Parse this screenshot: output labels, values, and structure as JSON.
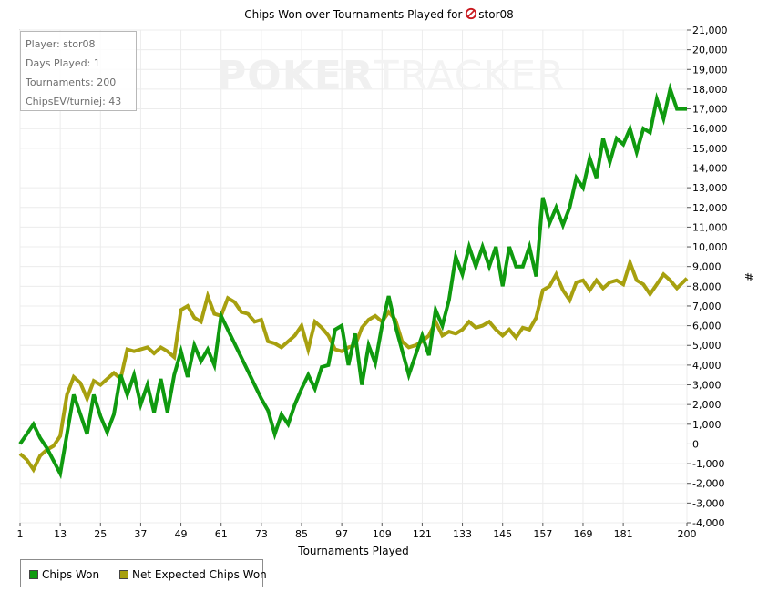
{
  "watermark": {
    "bold": "POKER",
    "light": "TRACKER"
  },
  "stats": {
    "player": "Player: stor08",
    "days": "Days Played: 1",
    "tournaments": "Tournaments: 200",
    "chips_ev": "ChipsEV/turniej: 43"
  },
  "legend": {
    "chips_won": "Chips Won",
    "net_expected": "Net Expected Chips Won"
  },
  "colors": {
    "chips_won": "#0f9a0f",
    "net_expected": "#a7a00f",
    "grid": "#ececec",
    "zero_line": "#000000"
  },
  "chart_data": {
    "type": "line",
    "title": "Chips Won over Tournaments Played for",
    "title_player": "stor08",
    "title_icon": "pokerstars-icon",
    "xlabel": "Tournaments Played",
    "ylabel": "#",
    "xlim": [
      1,
      200
    ],
    "ylim": [
      -4000,
      21000
    ],
    "x_ticks": [
      1,
      13,
      25,
      37,
      49,
      61,
      73,
      85,
      97,
      109,
      121,
      133,
      145,
      157,
      169,
      181,
      200
    ],
    "y_ticks": [
      "-4,000",
      "-3,000",
      "-2,000",
      "-1,000",
      "0",
      "1,000",
      "2,000",
      "3,000",
      "4,000",
      "5,000",
      "6,000",
      "7,000",
      "8,000",
      "9,000",
      "10,000",
      "11,000",
      "12,000",
      "13,000",
      "14,000",
      "15,000",
      "16,000",
      "17,000",
      "18,000",
      "19,000",
      "20,000",
      "21,000"
    ],
    "y_tick_values": [
      -4000,
      -3000,
      -2000,
      -1000,
      0,
      1000,
      2000,
      3000,
      4000,
      5000,
      6000,
      7000,
      8000,
      9000,
      10000,
      11000,
      12000,
      13000,
      14000,
      15000,
      16000,
      17000,
      18000,
      19000,
      20000,
      21000
    ],
    "grid": true,
    "series": [
      {
        "name": "Chips Won",
        "x": [
          1,
          3,
          5,
          7,
          9,
          13,
          17,
          21,
          23,
          25,
          27,
          29,
          31,
          33,
          35,
          37,
          39,
          41,
          43,
          45,
          47,
          49,
          51,
          53,
          55,
          57,
          59,
          61,
          73,
          75,
          77,
          79,
          81,
          83,
          85,
          87,
          89,
          91,
          93,
          95,
          97,
          99,
          101,
          103,
          105,
          107,
          109,
          111,
          113,
          117,
          121,
          123,
          125,
          127,
          129,
          131,
          133,
          135,
          137,
          139,
          141,
          143,
          145,
          147,
          149,
          151,
          153,
          155,
          157,
          159,
          161,
          163,
          165,
          167,
          169,
          171,
          173,
          175,
          177,
          179,
          181,
          183,
          185,
          187,
          189,
          191,
          193,
          195,
          197,
          200
        ],
        "y": [
          0,
          500,
          1000,
          300,
          -200,
          -1500,
          2500,
          500,
          2500,
          1400,
          600,
          1500,
          3500,
          2500,
          3500,
          2000,
          3000,
          1600,
          3300,
          1600,
          3500,
          4700,
          3400,
          5000,
          4200,
          4800,
          4000,
          6500,
          2300,
          1700,
          500,
          1500,
          1000,
          2000,
          2800,
          3500,
          2800,
          3900,
          4000,
          5800,
          6000,
          4000,
          5600,
          3000,
          5000,
          4100,
          6000,
          7500,
          6000,
          3500,
          5500,
          4500,
          6800,
          6000,
          7300,
          9500,
          8600,
          10000,
          9000,
          10000,
          9000,
          10000,
          8000,
          10000,
          9000,
          9000,
          10000,
          8500,
          12500,
          11200,
          12000,
          11100,
          12000,
          13500,
          13000,
          14500,
          13500,
          15500,
          14300,
          15500,
          15200,
          16000,
          14800,
          16000,
          15800,
          17500,
          16500,
          18000,
          17000,
          17000
        ]
      },
      {
        "name": "Net Expected Chips Won",
        "x": [
          1,
          3,
          5,
          7,
          9,
          11,
          13,
          15,
          17,
          19,
          21,
          23,
          25,
          27,
          29,
          31,
          33,
          35,
          37,
          39,
          41,
          43,
          45,
          47,
          49,
          51,
          53,
          55,
          57,
          59,
          61,
          63,
          65,
          67,
          69,
          71,
          73,
          75,
          77,
          79,
          81,
          83,
          85,
          87,
          89,
          91,
          93,
          95,
          97,
          99,
          101,
          103,
          105,
          107,
          109,
          111,
          113,
          115,
          117,
          119,
          121,
          123,
          125,
          127,
          129,
          131,
          133,
          135,
          137,
          139,
          141,
          143,
          145,
          147,
          149,
          151,
          153,
          155,
          157,
          159,
          161,
          163,
          165,
          167,
          169,
          171,
          173,
          175,
          177,
          179,
          181,
          183,
          185,
          187,
          189,
          191,
          193,
          195,
          197,
          200
        ],
        "y": [
          -500,
          -800,
          -1300,
          -600,
          -300,
          -100,
          400,
          2500,
          3400,
          3100,
          2300,
          3200,
          3000,
          3300,
          3600,
          3300,
          4800,
          4700,
          4800,
          4900,
          4600,
          4900,
          4700,
          4400,
          6800,
          7000,
          6400,
          6200,
          7500,
          6600,
          6500,
          7400,
          7200,
          6700,
          6600,
          6200,
          6300,
          5200,
          5100,
          4900,
          5200,
          5500,
          6000,
          4800,
          6200,
          5900,
          5500,
          4800,
          4700,
          4900,
          5000,
          5900,
          6300,
          6500,
          6200,
          6700,
          6300,
          5200,
          4900,
          5000,
          5200,
          5500,
          6200,
          5500,
          5700,
          5600,
          5800,
          6200,
          5900,
          6000,
          6200,
          5800,
          5500,
          5800,
          5400,
          5900,
          5800,
          6400,
          7800,
          8000,
          8600,
          7800,
          7300,
          8200,
          8300,
          7800,
          8300,
          7900,
          8200,
          8300,
          8100,
          9200,
          8300,
          8100,
          7600,
          8100,
          8600,
          8300,
          7900,
          8400
        ]
      }
    ]
  }
}
